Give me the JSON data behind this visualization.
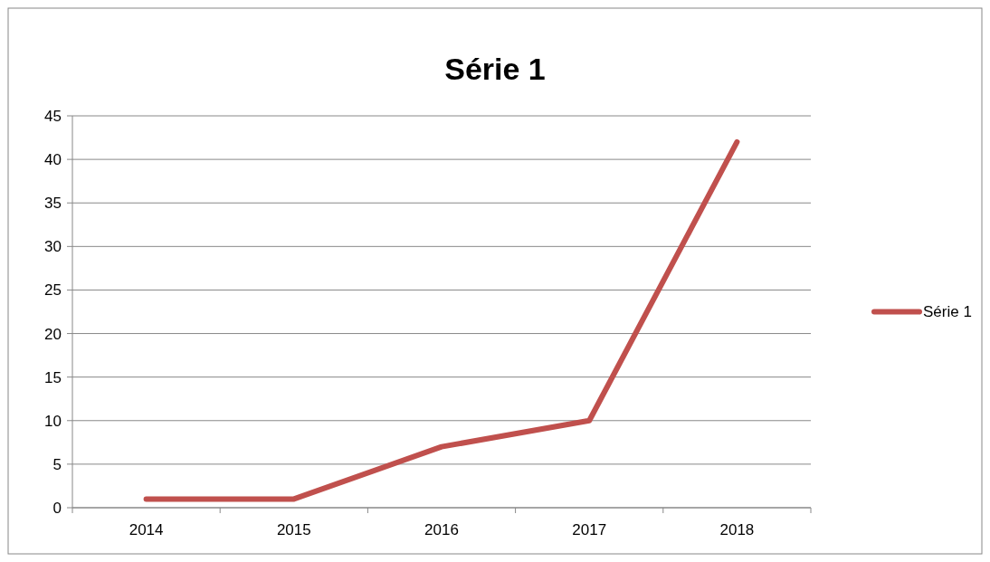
{
  "chart_data": {
    "type": "line",
    "title": "Série 1",
    "categories": [
      "2014",
      "2015",
      "2016",
      "2017",
      "2018"
    ],
    "series": [
      {
        "name": "Série 1",
        "color": "#c0504d",
        "values": [
          1,
          1,
          7,
          10,
          42
        ]
      }
    ],
    "ylim": [
      0,
      45
    ],
    "yticks": [
      0,
      5,
      10,
      15,
      20,
      25,
      30,
      35,
      40,
      45
    ],
    "grid": "y",
    "legend": "right",
    "marker": "none",
    "line_style": "solid"
  }
}
